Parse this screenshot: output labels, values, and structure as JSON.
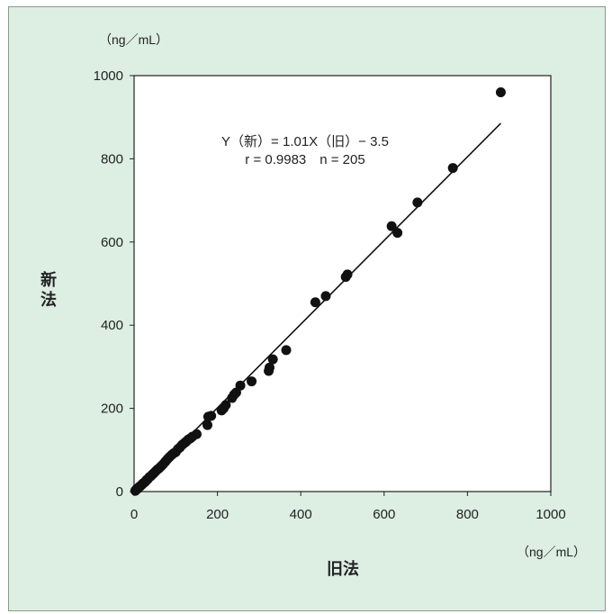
{
  "chart_data": {
    "type": "scatter",
    "ylabel": "新法",
    "xlabel": "旧法",
    "x_unit": "（ng／mL）",
    "y_unit": "（ng／mL）",
    "xlim": [
      0,
      1000
    ],
    "ylim": [
      0,
      1000
    ],
    "xticks": [
      0,
      200,
      400,
      600,
      800,
      1000
    ],
    "yticks": [
      0,
      200,
      400,
      600,
      800,
      1000
    ],
    "grid": false,
    "annotation": {
      "line1": "Y（新）= 1.01X（旧）− 3.5",
      "line2": "r = 0.9983　n = 205"
    },
    "regression": {
      "slope": 1.01,
      "intercept": -3.5,
      "x_range": [
        0,
        880
      ]
    },
    "points": [
      [
        3,
        2
      ],
      [
        5,
        4
      ],
      [
        6,
        6
      ],
      [
        8,
        7
      ],
      [
        10,
        8
      ],
      [
        12,
        11
      ],
      [
        15,
        13
      ],
      [
        18,
        16
      ],
      [
        20,
        18
      ],
      [
        22,
        20
      ],
      [
        25,
        22
      ],
      [
        28,
        25
      ],
      [
        30,
        28
      ],
      [
        33,
        30
      ],
      [
        36,
        34
      ],
      [
        40,
        37
      ],
      [
        44,
        41
      ],
      [
        48,
        45
      ],
      [
        52,
        49
      ],
      [
        56,
        53
      ],
      [
        60,
        56
      ],
      [
        65,
        61
      ],
      [
        70,
        66
      ],
      [
        75,
        72
      ],
      [
        80,
        78
      ],
      [
        85,
        83
      ],
      [
        90,
        88
      ],
      [
        95,
        92
      ],
      [
        100,
        95
      ],
      [
        105,
        102
      ],
      [
        110,
        106
      ],
      [
        115,
        112
      ],
      [
        120,
        116
      ],
      [
        125,
        120
      ],
      [
        130,
        125
      ],
      [
        135,
        128
      ],
      [
        140,
        132
      ],
      [
        150,
        138
      ],
      [
        176,
        160
      ],
      [
        178,
        180
      ],
      [
        185,
        182
      ],
      [
        210,
        195
      ],
      [
        215,
        200
      ],
      [
        220,
        208
      ],
      [
        235,
        225
      ],
      [
        240,
        233
      ],
      [
        245,
        238
      ],
      [
        255,
        255
      ],
      [
        282,
        265
      ],
      [
        323,
        290
      ],
      [
        325,
        298
      ],
      [
        333,
        318
      ],
      [
        365,
        340
      ],
      [
        435,
        455
      ],
      [
        460,
        470
      ],
      [
        508,
        516
      ],
      [
        512,
        522
      ],
      [
        618,
        638
      ],
      [
        632,
        622
      ],
      [
        680,
        695
      ],
      [
        765,
        778
      ],
      [
        880,
        960
      ]
    ],
    "marker_color": "#111111",
    "line_color": "#111111",
    "panel_background": "#ddeee3",
    "plot_background": "#ffffff"
  }
}
